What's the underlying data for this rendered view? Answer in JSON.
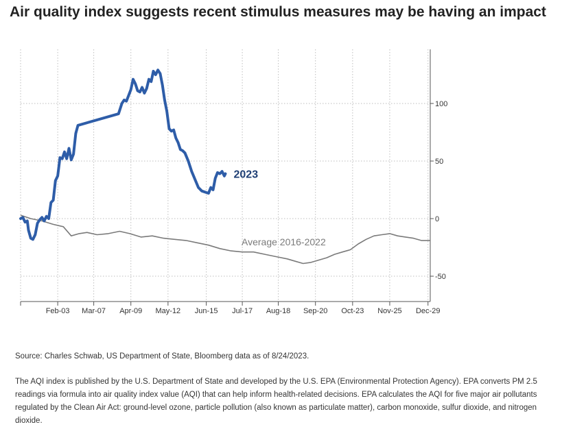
{
  "title": "Air quality index suggests recent stimulus measures may be having an impact",
  "source": "Source: Charles Schwab, US Department of State, Bloomberg data as of 8/24/2023.",
  "note": "The AQI index is published by the U.S. Department of State and developed by the U.S. EPA (Environmental Protection Agency). EPA converts PM 2.5 readings via formula into air quality index value (AQI) that can help inform health-related decisions. EPA calculates the AQI for five major air pollutants regulated by the Clean Air Act: ground-level ozone, particle pollution (also known as particulate matter), carbon monoxide, sulfur dioxide, and nitrogen dioxide.",
  "chart_data": {
    "type": "line",
    "y_axis_side": "right",
    "ylim": [
      -72,
      147
    ],
    "yticks": [
      -50,
      0,
      50,
      100
    ],
    "xlim": [
      "2023-01-01",
      "2023-12-31"
    ],
    "xticks": [
      {
        "date": "2023-02-03",
        "label": "Feb-03"
      },
      {
        "date": "2023-03-07",
        "label": "Mar-07"
      },
      {
        "date": "2023-04-09",
        "label": "Apr-09"
      },
      {
        "date": "2023-05-12",
        "label": "May-12"
      },
      {
        "date": "2023-06-15",
        "label": "Jun-15"
      },
      {
        "date": "2023-07-17",
        "label": "Jul-17"
      },
      {
        "date": "2023-08-18",
        "label": "Aug-18"
      },
      {
        "date": "2023-09-20",
        "label": "Sep-20"
      },
      {
        "date": "2023-10-23",
        "label": "Oct-23"
      },
      {
        "date": "2023-11-25",
        "label": "Nov-25"
      },
      {
        "date": "2023-12-29",
        "label": "Dec-29"
      }
    ],
    "grid": true,
    "series": [
      {
        "name": "2023",
        "color": "#2e5da8",
        "label_position": "end",
        "points": [
          [
            "2023-01-01",
            0
          ],
          [
            "2023-01-03",
            1
          ],
          [
            "2023-01-05",
            -3
          ],
          [
            "2023-01-07",
            -2
          ],
          [
            "2023-01-08",
            -10
          ],
          [
            "2023-01-10",
            -17
          ],
          [
            "2023-01-12",
            -18
          ],
          [
            "2023-01-14",
            -14
          ],
          [
            "2023-01-16",
            -4
          ],
          [
            "2023-01-18",
            -1
          ],
          [
            "2023-01-20",
            1
          ],
          [
            "2023-01-22",
            -2
          ],
          [
            "2023-01-24",
            2
          ],
          [
            "2023-01-26",
            0
          ],
          [
            "2023-01-28",
            14
          ],
          [
            "2023-01-30",
            16
          ],
          [
            "2023-02-01",
            33
          ],
          [
            "2023-02-03",
            37
          ],
          [
            "2023-02-05",
            53
          ],
          [
            "2023-02-07",
            52
          ],
          [
            "2023-02-09",
            58
          ],
          [
            "2023-02-11",
            52
          ],
          [
            "2023-02-13",
            61
          ],
          [
            "2023-02-15",
            51
          ],
          [
            "2023-02-17",
            56
          ],
          [
            "2023-02-19",
            74
          ],
          [
            "2023-02-21",
            81
          ],
          [
            "2023-03-29",
            91
          ],
          [
            "2023-04-01",
            100
          ],
          [
            "2023-04-03",
            103
          ],
          [
            "2023-04-05",
            102
          ],
          [
            "2023-04-07",
            107
          ],
          [
            "2023-04-09",
            112
          ],
          [
            "2023-04-11",
            121
          ],
          [
            "2023-04-13",
            117
          ],
          [
            "2023-04-15",
            111
          ],
          [
            "2023-04-17",
            110
          ],
          [
            "2023-04-19",
            114
          ],
          [
            "2023-04-21",
            109
          ],
          [
            "2023-04-23",
            113
          ],
          [
            "2023-04-25",
            121
          ],
          [
            "2023-04-27",
            119
          ],
          [
            "2023-04-29",
            128
          ],
          [
            "2023-05-01",
            125
          ],
          [
            "2023-05-03",
            129
          ],
          [
            "2023-05-05",
            126
          ],
          [
            "2023-05-07",
            116
          ],
          [
            "2023-05-09",
            103
          ],
          [
            "2023-05-11",
            93
          ],
          [
            "2023-05-13",
            78
          ],
          [
            "2023-05-15",
            76
          ],
          [
            "2023-05-17",
            77
          ],
          [
            "2023-05-19",
            70
          ],
          [
            "2023-05-21",
            66
          ],
          [
            "2023-05-23",
            60
          ],
          [
            "2023-05-25",
            59
          ],
          [
            "2023-05-27",
            57
          ],
          [
            "2023-05-30",
            50
          ],
          [
            "2023-06-02",
            41
          ],
          [
            "2023-06-05",
            34
          ],
          [
            "2023-06-08",
            27
          ],
          [
            "2023-06-11",
            24
          ],
          [
            "2023-06-14",
            23
          ],
          [
            "2023-06-17",
            22
          ],
          [
            "2023-06-19",
            27
          ],
          [
            "2023-06-21",
            25
          ],
          [
            "2023-06-23",
            35
          ],
          [
            "2023-06-25",
            40
          ],
          [
            "2023-06-27",
            39
          ],
          [
            "2023-06-29",
            41
          ],
          [
            "2023-07-01",
            37
          ],
          [
            "2023-07-02",
            39
          ]
        ]
      },
      {
        "name": "Average 2016-2022",
        "color": "#7a7a7a",
        "label_position": "inline",
        "points": [
          [
            "2023-01-01",
            3
          ],
          [
            "2023-01-10",
            0
          ],
          [
            "2023-01-20",
            -2
          ],
          [
            "2023-01-30",
            -5
          ],
          [
            "2023-02-08",
            -7
          ],
          [
            "2023-02-15",
            -15
          ],
          [
            "2023-02-22",
            -13
          ],
          [
            "2023-03-01",
            -12
          ],
          [
            "2023-03-10",
            -14
          ],
          [
            "2023-03-20",
            -13
          ],
          [
            "2023-03-30",
            -11
          ],
          [
            "2023-04-08",
            -13
          ],
          [
            "2023-04-18",
            -16
          ],
          [
            "2023-04-28",
            -15
          ],
          [
            "2023-05-08",
            -17
          ],
          [
            "2023-05-18",
            -18
          ],
          [
            "2023-05-28",
            -19
          ],
          [
            "2023-06-07",
            -21
          ],
          [
            "2023-06-17",
            -23
          ],
          [
            "2023-06-27",
            -26
          ],
          [
            "2023-07-07",
            -28
          ],
          [
            "2023-07-17",
            -29
          ],
          [
            "2023-07-27",
            -29
          ],
          [
            "2023-08-06",
            -31
          ],
          [
            "2023-08-16",
            -33
          ],
          [
            "2023-08-26",
            -35
          ],
          [
            "2023-09-02",
            -37
          ],
          [
            "2023-09-09",
            -39
          ],
          [
            "2023-09-16",
            -38
          ],
          [
            "2023-09-23",
            -36
          ],
          [
            "2023-09-30",
            -34
          ],
          [
            "2023-10-07",
            -31
          ],
          [
            "2023-10-14",
            -29
          ],
          [
            "2023-10-21",
            -27
          ],
          [
            "2023-10-28",
            -22
          ],
          [
            "2023-11-04",
            -18
          ],
          [
            "2023-11-11",
            -15
          ],
          [
            "2023-11-18",
            -14
          ],
          [
            "2023-11-25",
            -13
          ],
          [
            "2023-12-02",
            -15
          ],
          [
            "2023-12-09",
            -16
          ],
          [
            "2023-12-16",
            -17
          ],
          [
            "2023-12-23",
            -19
          ],
          [
            "2023-12-31",
            -19
          ]
        ]
      }
    ]
  }
}
